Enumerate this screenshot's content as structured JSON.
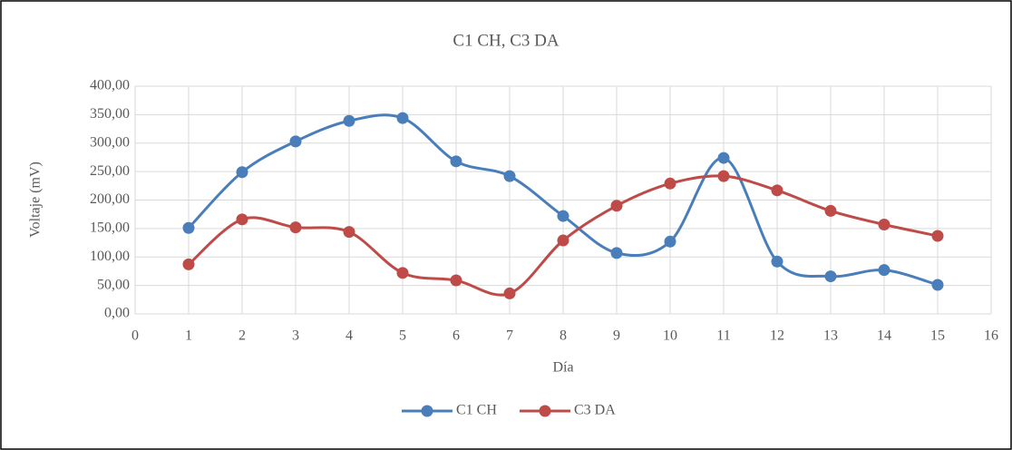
{
  "chart_data": {
    "type": "line",
    "title": "C1 CH, C3 DA",
    "xlabel": "Día",
    "ylabel": "Voltaje (mV)",
    "x": [
      1,
      2,
      3,
      4,
      5,
      6,
      7,
      8,
      9,
      10,
      11,
      12,
      13,
      14,
      15
    ],
    "series": [
      {
        "name": "C1 CH",
        "color": "#4a7ebb",
        "values": [
          151,
          249,
          303,
          339,
          344,
          268,
          242,
          172,
          107,
          127,
          274,
          92,
          66,
          77,
          51
        ]
      },
      {
        "name": "C3 DA",
        "color": "#be4b48",
        "values": [
          87,
          166,
          152,
          144,
          72,
          59,
          36,
          129,
          190,
          229,
          242,
          217,
          181,
          157,
          137
        ]
      }
    ],
    "xlim": [
      0,
      16
    ],
    "xticks": [
      0,
      1,
      2,
      3,
      4,
      5,
      6,
      7,
      8,
      9,
      10,
      11,
      12,
      13,
      14,
      15,
      16
    ],
    "ylim": [
      0,
      400
    ],
    "yticks": [
      {
        "value": 0,
        "label": "0,00"
      },
      {
        "value": 50,
        "label": "50,00"
      },
      {
        "value": 100,
        "label": "100,00"
      },
      {
        "value": 150,
        "label": "150,00"
      },
      {
        "value": 200,
        "label": "200,00"
      },
      {
        "value": 250,
        "label": "250,00"
      },
      {
        "value": 300,
        "label": "300,00"
      },
      {
        "value": 350,
        "label": "350,00"
      },
      {
        "value": 400,
        "label": "400,00"
      }
    ],
    "grid": true,
    "smooth": true,
    "legend": "bottom"
  }
}
